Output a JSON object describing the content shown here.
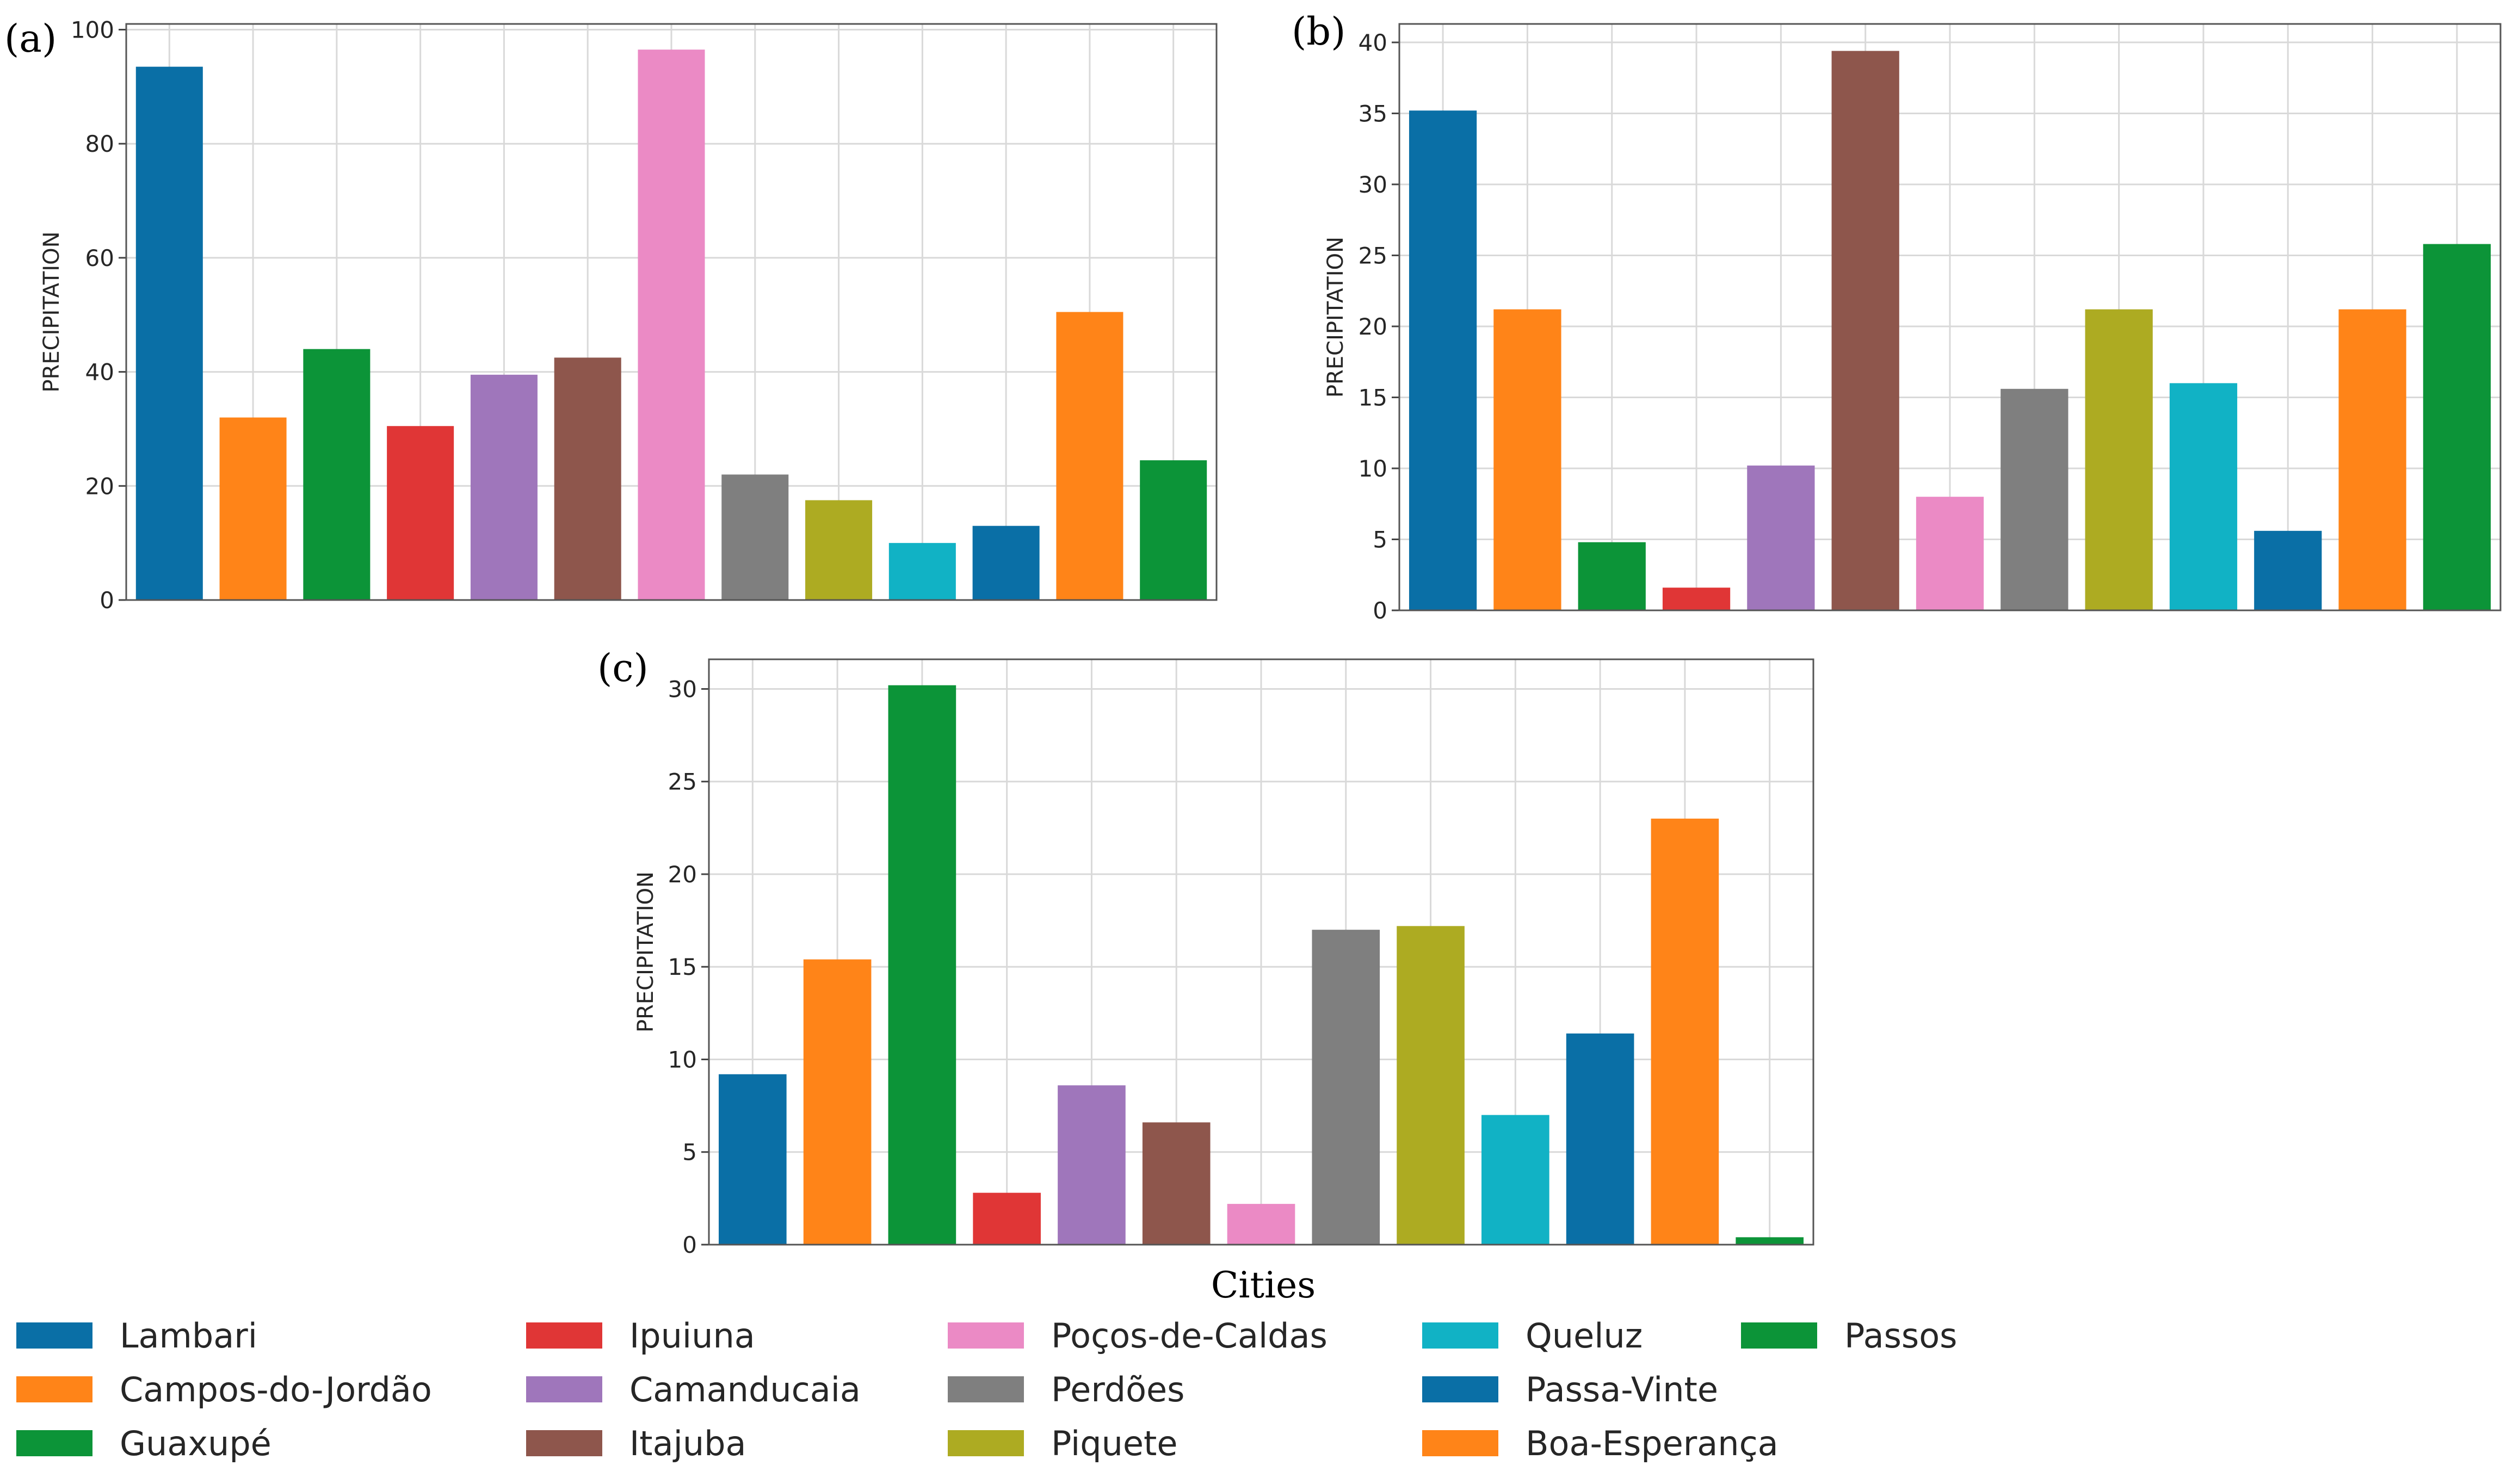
{
  "figure": {
    "xlabel": "Cities",
    "colors": {
      "blue": "#0a6fa6",
      "orange": "#ff8418",
      "green": "#0c9438",
      "red": "#e03636",
      "purple": "#9f76bb",
      "brown": "#8e564c",
      "pink": "#eb8ac5",
      "gray": "#7f7f7f",
      "olive": "#adab22",
      "cyan": "#11b2c5"
    },
    "legend": [
      {
        "label": "Lambari",
        "color": "#0a6fa6"
      },
      {
        "label": "Campos-do-Jordão",
        "color": "#ff8418"
      },
      {
        "label": "Guaxupé",
        "color": "#0c9438"
      },
      {
        "label": "Ipuiuna",
        "color": "#e03636"
      },
      {
        "label": "Camanducaia",
        "color": "#9f76bb"
      },
      {
        "label": "Itajuba",
        "color": "#8e564c"
      },
      {
        "label": "Poços-de-Caldas",
        "color": "#eb8ac5"
      },
      {
        "label": "Perdões",
        "color": "#7f7f7f"
      },
      {
        "label": "Piquete",
        "color": "#adab22"
      },
      {
        "label": "Queluz",
        "color": "#11b2c5"
      },
      {
        "label": "Passa-Vinte",
        "color": "#0a6fa6"
      },
      {
        "label": "Boa-Esperança",
        "color": "#ff8418"
      },
      {
        "label": "Passos",
        "color": "#0c9438"
      }
    ]
  },
  "chart_data": [
    {
      "type": "bar",
      "panel_label": "(a)",
      "ylabel": "PRECIPITATION",
      "categories": [
        "Lambari",
        "Campos-do-Jordão",
        "Guaxupé",
        "Ipuiuna",
        "Camanducaia",
        "Itajuba",
        "Poços-de-Caldas",
        "Perdões",
        "Piquete",
        "Queluz",
        "Passa-Vinte",
        "Boa-Esperança",
        "Passos"
      ],
      "values": [
        93.5,
        32,
        44,
        30.5,
        39.5,
        42.5,
        96.5,
        22,
        17.5,
        10,
        13,
        50.5,
        24.5
      ],
      "ylim": [
        0,
        101
      ],
      "yticks": [
        0,
        20,
        40,
        60,
        80,
        100
      ],
      "grid": true
    },
    {
      "type": "bar",
      "panel_label": "(b)",
      "ylabel": "PRECIPITATION",
      "categories": [
        "Lambari",
        "Campos-do-Jordão",
        "Guaxupé",
        "Ipuiuna",
        "Camanducaia",
        "Itajuba",
        "Poços-de-Caldas",
        "Perdões",
        "Piquete",
        "Queluz",
        "Passa-Vinte",
        "Boa-Esperança",
        "Passos"
      ],
      "values": [
        35.2,
        21.2,
        4.8,
        1.6,
        10.2,
        39.4,
        8,
        15.6,
        21.2,
        16,
        5.6,
        21.2,
        25.8
      ],
      "ylim": [
        0,
        41.3
      ],
      "yticks": [
        0,
        5,
        10,
        15,
        20,
        25,
        30,
        35,
        40
      ],
      "grid": true
    },
    {
      "type": "bar",
      "panel_label": "(c)",
      "ylabel": "PRECIPITATION",
      "xlabel": "Cities",
      "categories": [
        "Lambari",
        "Campos-do-Jordão",
        "Guaxupé",
        "Ipuiuna",
        "Camanducaia",
        "Itajuba",
        "Poços-de-Caldas",
        "Perdões",
        "Piquete",
        "Queluz",
        "Passa-Vinte",
        "Boa-Esperança",
        "Passos"
      ],
      "values": [
        9.2,
        15.4,
        30.2,
        2.8,
        8.6,
        6.6,
        2.2,
        17,
        17.2,
        7,
        11.4,
        23,
        0.4
      ],
      "ylim": [
        0,
        31.6
      ],
      "yticks": [
        0,
        5,
        10,
        15,
        20,
        25,
        30
      ],
      "grid": true
    }
  ]
}
